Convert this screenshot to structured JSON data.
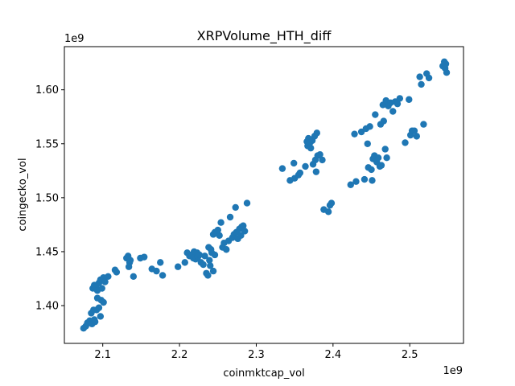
{
  "chart_data": {
    "type": "scatter",
    "title": "XRPVolume_HTH_diff",
    "xlabel": "coinmktcap_vol",
    "ylabel": "coingecko_vol",
    "x_offset_label": "1e9",
    "y_offset_label": "1e9",
    "xlim": [
      2.05,
      2.57
    ],
    "ylim": [
      1.365,
      1.64
    ],
    "xticks": [
      2.1,
      2.2,
      2.3,
      2.4,
      2.5
    ],
    "xtick_labels": [
      "2.1",
      "2.2",
      "2.3",
      "2.4",
      "2.5"
    ],
    "yticks": [
      1.4,
      1.45,
      1.5,
      1.55,
      1.6
    ],
    "ytick_labels": [
      "1.40",
      "1.45",
      "1.50",
      "1.55",
      "1.60"
    ],
    "grid": false,
    "marker_color": "#1f77b4",
    "points": [
      [
        2.075,
        1.379
      ],
      [
        2.078,
        1.381
      ],
      [
        2.08,
        1.384
      ],
      [
        2.083,
        1.386
      ],
      [
        2.086,
        1.383
      ],
      [
        2.089,
        1.387
      ],
      [
        2.09,
        1.385
      ],
      [
        2.092,
        1.396
      ],
      [
        2.095,
        1.398
      ],
      [
        2.097,
        1.39
      ],
      [
        2.085,
        1.393
      ],
      [
        2.088,
        1.396
      ],
      [
        2.093,
        1.407
      ],
      [
        2.098,
        1.405
      ],
      [
        2.101,
        1.403
      ],
      [
        2.087,
        1.416
      ],
      [
        2.089,
        1.419
      ],
      [
        2.091,
        1.418
      ],
      [
        2.093,
        1.414
      ],
      [
        2.095,
        1.421
      ],
      [
        2.097,
        1.424
      ],
      [
        2.099,
        1.416
      ],
      [
        2.101,
        1.426
      ],
      [
        2.103,
        1.422
      ],
      [
        2.107,
        1.427
      ],
      [
        2.116,
        1.433
      ],
      [
        2.118,
        1.431
      ],
      [
        2.131,
        1.444
      ],
      [
        2.133,
        1.446
      ],
      [
        2.135,
        1.44
      ],
      [
        2.134,
        1.436
      ],
      [
        2.136,
        1.442
      ],
      [
        2.14,
        1.427
      ],
      [
        2.149,
        1.444
      ],
      [
        2.154,
        1.445
      ],
      [
        2.164,
        1.434
      ],
      [
        2.17,
        1.432
      ],
      [
        2.175,
        1.44
      ],
      [
        2.178,
        1.428
      ],
      [
        2.198,
        1.436
      ],
      [
        2.207,
        1.44
      ],
      [
        2.21,
        1.449
      ],
      [
        2.213,
        1.446
      ],
      [
        2.216,
        1.447
      ],
      [
        2.218,
        1.444
      ],
      [
        2.219,
        1.45
      ],
      [
        2.221,
        1.443
      ],
      [
        2.223,
        1.449
      ],
      [
        2.224,
        1.445
      ],
      [
        2.226,
        1.447
      ],
      [
        2.228,
        1.44
      ],
      [
        2.231,
        1.438
      ],
      [
        2.233,
        1.446
      ],
      [
        2.235,
        1.43
      ],
      [
        2.237,
        1.428
      ],
      [
        2.239,
        1.442
      ],
      [
        2.24,
        1.437
      ],
      [
        2.242,
        1.449
      ],
      [
        2.244,
        1.432
      ],
      [
        2.246,
        1.447
      ],
      [
        2.238,
        1.454
      ],
      [
        2.241,
        1.452
      ],
      [
        2.244,
        1.466
      ],
      [
        2.246,
        1.468
      ],
      [
        2.249,
        1.467
      ],
      [
        2.25,
        1.47
      ],
      [
        2.252,
        1.465
      ],
      [
        2.254,
        1.477
      ],
      [
        2.256,
        1.454
      ],
      [
        2.258,
        1.458
      ],
      [
        2.261,
        1.452
      ],
      [
        2.264,
        1.46
      ],
      [
        2.266,
        1.482
      ],
      [
        2.269,
        1.463
      ],
      [
        2.271,
        1.466
      ],
      [
        2.273,
        1.491
      ],
      [
        2.274,
        1.468
      ],
      [
        2.276,
        1.462
      ],
      [
        2.278,
        1.471
      ],
      [
        2.28,
        1.465
      ],
      [
        2.281,
        1.473
      ],
      [
        2.283,
        1.474
      ],
      [
        2.285,
        1.469
      ],
      [
        2.288,
        1.495
      ],
      [
        2.334,
        1.527
      ],
      [
        2.344,
        1.516
      ],
      [
        2.35,
        1.518
      ],
      [
        2.349,
        1.532
      ],
      [
        2.355,
        1.521
      ],
      [
        2.357,
        1.523
      ],
      [
        2.364,
        1.529
      ],
      [
        2.366,
        1.552
      ],
      [
        2.367,
        1.548
      ],
      [
        2.368,
        1.555
      ],
      [
        2.37,
        1.551
      ],
      [
        2.371,
        1.546
      ],
      [
        2.373,
        1.553
      ],
      [
        2.374,
        1.531
      ],
      [
        2.376,
        1.557
      ],
      [
        2.377,
        1.535
      ],
      [
        2.378,
        1.524
      ],
      [
        2.379,
        1.56
      ],
      [
        2.38,
        1.539
      ],
      [
        2.383,
        1.54
      ],
      [
        2.386,
        1.535
      ],
      [
        2.388,
        1.489
      ],
      [
        2.394,
        1.487
      ],
      [
        2.396,
        1.493
      ],
      [
        2.398,
        1.495
      ],
      [
        2.423,
        1.512
      ],
      [
        2.428,
        1.559
      ],
      [
        2.43,
        1.515
      ],
      [
        2.437,
        1.561
      ],
      [
        2.441,
        1.517
      ],
      [
        2.443,
        1.564
      ],
      [
        2.445,
        1.55
      ],
      [
        2.446,
        1.528
      ],
      [
        2.448,
        1.566
      ],
      [
        2.45,
        1.526
      ],
      [
        2.451,
        1.516
      ],
      [
        2.452,
        1.536
      ],
      [
        2.454,
        1.539
      ],
      [
        2.455,
        1.577
      ],
      [
        2.457,
        1.533
      ],
      [
        2.459,
        1.537
      ],
      [
        2.461,
        1.529
      ],
      [
        2.462,
        1.568
      ],
      [
        2.463,
        1.53
      ],
      [
        2.465,
        1.586
      ],
      [
        2.466,
        1.571
      ],
      [
        2.468,
        1.545
      ],
      [
        2.469,
        1.59
      ],
      [
        2.47,
        1.537
      ],
      [
        2.472,
        1.585
      ],
      [
        2.475,
        1.588
      ],
      [
        2.478,
        1.58
      ],
      [
        2.481,
        1.589
      ],
      [
        2.484,
        1.587
      ],
      [
        2.487,
        1.592
      ],
      [
        2.494,
        1.551
      ],
      [
        2.499,
        1.591
      ],
      [
        2.501,
        1.558
      ],
      [
        2.503,
        1.562
      ],
      [
        2.506,
        1.562
      ],
      [
        2.509,
        1.557
      ],
      [
        2.513,
        1.612
      ],
      [
        2.515,
        1.605
      ],
      [
        2.518,
        1.568
      ],
      [
        2.522,
        1.615
      ],
      [
        2.525,
        1.611
      ],
      [
        2.543,
        1.622
      ],
      [
        2.545,
        1.626
      ],
      [
        2.547,
        1.624
      ],
      [
        2.548,
        1.616
      ],
      [
        2.546,
        1.62
      ]
    ]
  }
}
